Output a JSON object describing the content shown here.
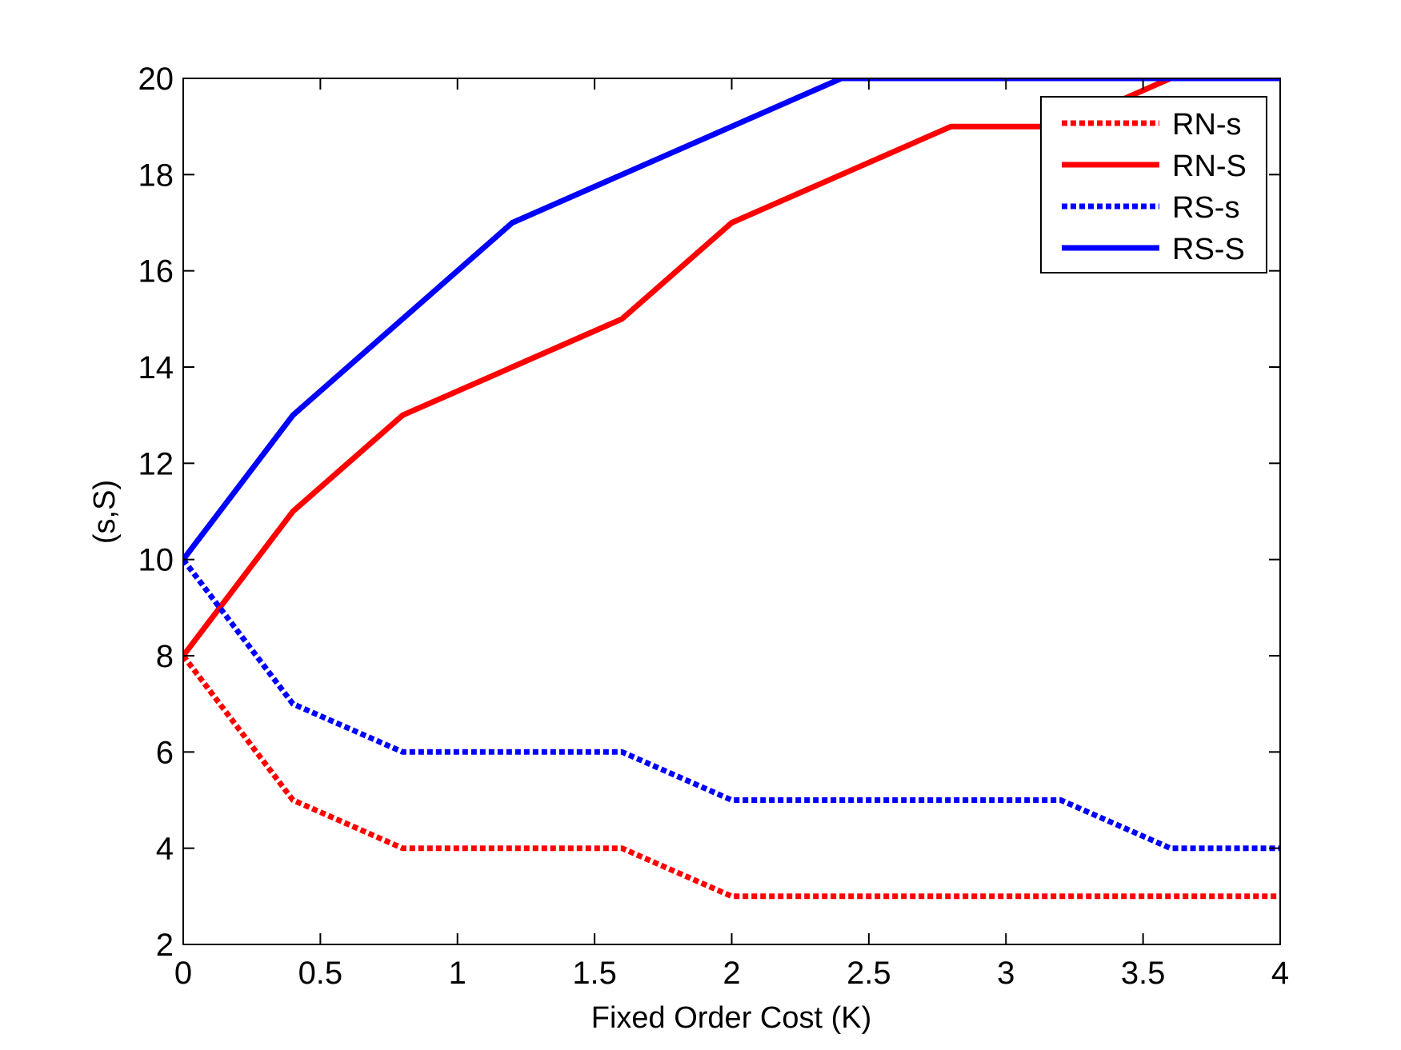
{
  "chart_data": {
    "type": "line",
    "xlabel": "Fixed Order Cost (K)",
    "ylabel": "(s,S)",
    "xlim": [
      0,
      4
    ],
    "ylim": [
      2,
      20
    ],
    "xticks": [
      0,
      0.5,
      1,
      1.5,
      2,
      2.5,
      3,
      3.5,
      4
    ],
    "xtick_labels": [
      "0",
      "0.5",
      "1",
      "1.5",
      "2",
      "2.5",
      "3",
      "3.5",
      "4"
    ],
    "yticks": [
      2,
      4,
      6,
      8,
      10,
      12,
      14,
      16,
      18,
      20
    ],
    "ytick_labels": [
      "2",
      "4",
      "6",
      "8",
      "10",
      "12",
      "14",
      "16",
      "18",
      "20"
    ],
    "grid": false,
    "legend_position": "top-right",
    "x": [
      0,
      0.4,
      0.8,
      1.2,
      1.6,
      2.0,
      2.4,
      2.8,
      3.2,
      3.6,
      4.0
    ],
    "series": [
      {
        "name": "RN-s",
        "color": "#ff0000",
        "dashed": true,
        "values": [
          8,
          5,
          4,
          4,
          4,
          3,
          3,
          3,
          3,
          3,
          3
        ]
      },
      {
        "name": "RN-S",
        "color": "#ff0000",
        "dashed": false,
        "values": [
          8,
          11,
          13,
          14,
          15,
          17,
          18,
          19,
          19,
          20,
          20
        ]
      },
      {
        "name": "RS-s",
        "color": "#0000ff",
        "dashed": true,
        "values": [
          10,
          7,
          6,
          6,
          6,
          5,
          5,
          5,
          5,
          4,
          4
        ]
      },
      {
        "name": "RS-S",
        "color": "#0000ff",
        "dashed": false,
        "values": [
          10,
          13,
          15,
          17,
          18,
          19,
          20,
          20,
          20,
          20,
          20
        ]
      }
    ]
  }
}
